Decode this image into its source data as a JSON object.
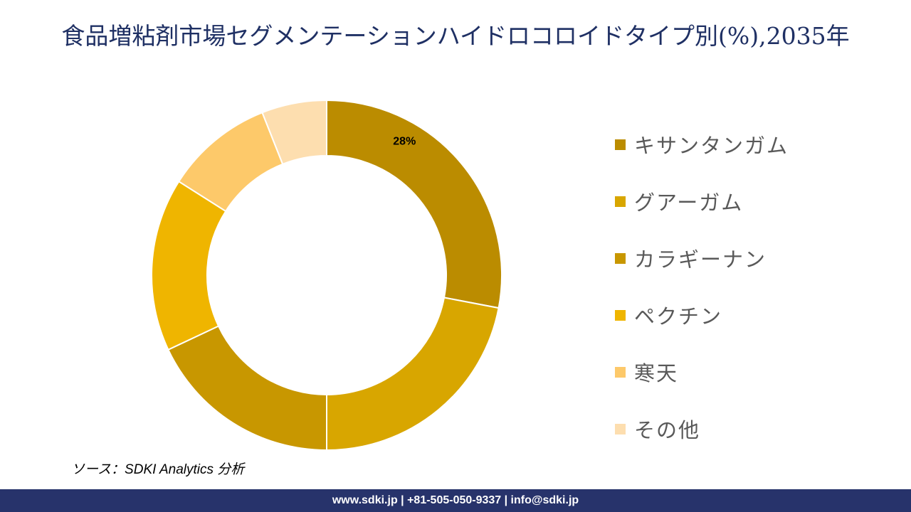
{
  "title": "食品増粘剤市場セグメンテーションハイドロコロイドタイプ別(%),2035年",
  "source": "ソース：SDKI Analytics 分析",
  "footer": "www.sdki.jp | +81-505-050-9337 | info@sdki.jp",
  "legend": [
    {
      "label": "キサンタンガム",
      "color": "#bb8c00"
    },
    {
      "label": "グアーガム",
      "color": "#d8a600"
    },
    {
      "label": "カラギーナン",
      "color": "#c89700"
    },
    {
      "label": "ペクチン",
      "color": "#efb500"
    },
    {
      "label": "寒天",
      "color": "#fdc96a"
    },
    {
      "label": "その他",
      "color": "#fddeaf"
    }
  ],
  "chart_data": {
    "type": "pie",
    "subtype": "donut",
    "title": "食品増粘剤市場セグメンテーションハイドロコロイドタイプ別(%),2035年",
    "categories": [
      "キサンタンガム",
      "グアーガム",
      "カラギーナン",
      "ペクチン",
      "寒天",
      "その他"
    ],
    "values": [
      28,
      22,
      18,
      16,
      10,
      6
    ],
    "colors": [
      "#bb8c00",
      "#d8a600",
      "#c89700",
      "#efb500",
      "#fdc96a",
      "#fddeaf"
    ],
    "data_labels": [
      {
        "category": "キサンタンガム",
        "text": "28%"
      }
    ],
    "legend_position": "right",
    "start_angle": 0,
    "direction": "clockwise"
  }
}
